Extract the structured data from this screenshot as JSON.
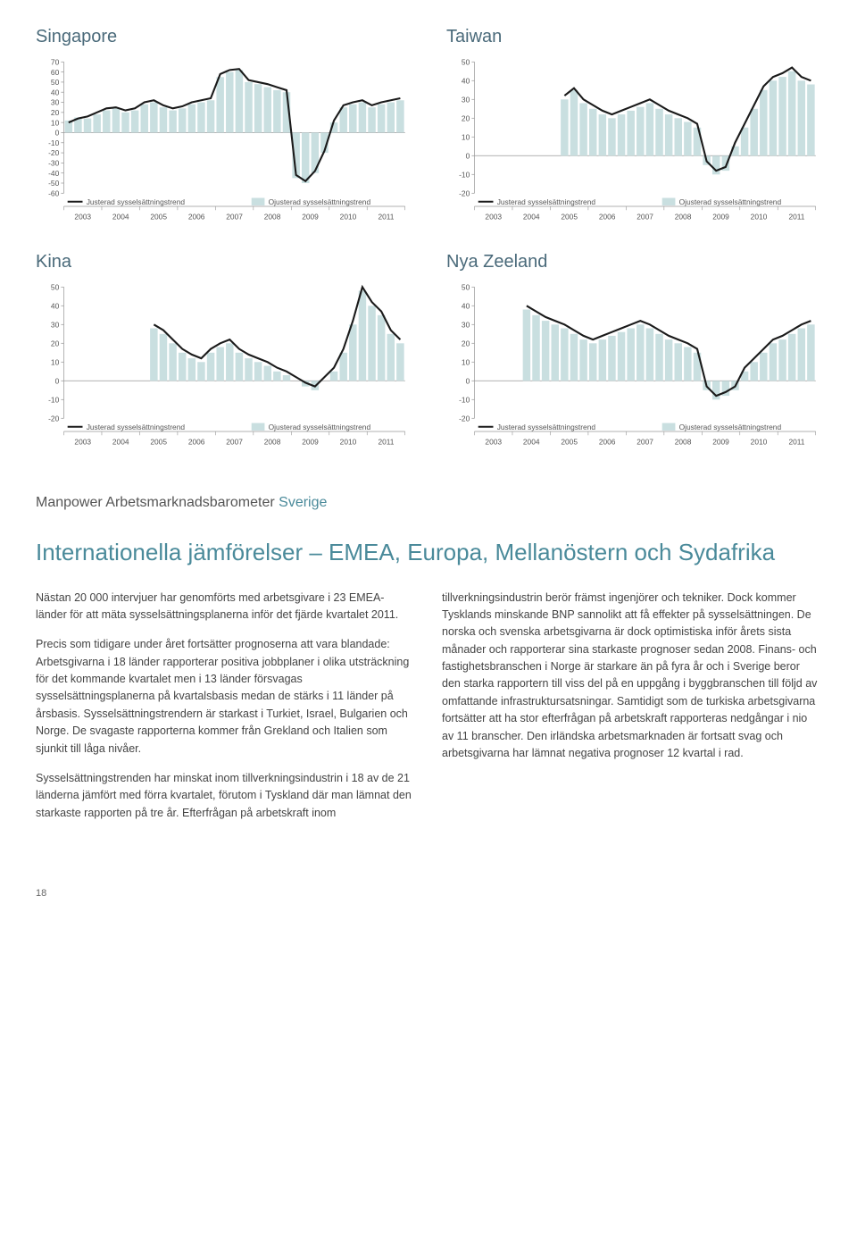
{
  "charts": {
    "singapore": {
      "title": "Singapore",
      "type": "bar+line",
      "ylim": [
        -60,
        70
      ],
      "ytick_step": 10,
      "years": [
        "2003",
        "2004",
        "2005",
        "2006",
        "2007",
        "2008",
        "2009",
        "2010",
        "2011"
      ],
      "bars": [
        12,
        15,
        14,
        18,
        22,
        24,
        20,
        22,
        28,
        30,
        25,
        22,
        24,
        28,
        30,
        32,
        55,
        60,
        62,
        50,
        48,
        45,
        42,
        40,
        -45,
        -50,
        -40,
        -20,
        10,
        25,
        28,
        30,
        25,
        28,
        30,
        32
      ],
      "line": [
        10,
        14,
        16,
        20,
        24,
        25,
        22,
        24,
        30,
        32,
        27,
        24,
        26,
        30,
        32,
        34,
        58,
        62,
        63,
        52,
        50,
        48,
        45,
        42,
        -42,
        -48,
        -38,
        -18,
        12,
        27,
        30,
        32,
        27,
        30,
        32,
        34
      ],
      "bar_color": "#c9dfe0",
      "line_color": "#1a1a1a",
      "legend_adj": "Justerad sysselsättningstrend",
      "legend_raw": "Ojusterad sysselsättningstrend",
      "grid_color": "#999999"
    },
    "taiwan": {
      "title": "Taiwan",
      "type": "bar+line",
      "ylim": [
        -20,
        50
      ],
      "ytick_step": 10,
      "years": [
        "2003",
        "2004",
        "2005",
        "2006",
        "2007",
        "2008",
        "2009",
        "2010",
        "2011"
      ],
      "bars": [
        null,
        null,
        null,
        null,
        null,
        null,
        null,
        null,
        null,
        30,
        35,
        28,
        25,
        22,
        20,
        22,
        24,
        26,
        28,
        25,
        22,
        20,
        18,
        15,
        -5,
        -10,
        -8,
        5,
        15,
        25,
        35,
        40,
        42,
        45,
        40,
        38
      ],
      "line": [
        null,
        null,
        null,
        null,
        null,
        null,
        null,
        null,
        null,
        32,
        36,
        30,
        27,
        24,
        22,
        24,
        26,
        28,
        30,
        27,
        24,
        22,
        20,
        17,
        -3,
        -8,
        -6,
        7,
        17,
        27,
        37,
        42,
        44,
        47,
        42,
        40
      ],
      "bar_color": "#c9dfe0",
      "line_color": "#1a1a1a",
      "legend_adj": "Justerad sysselsättningstrend",
      "legend_raw": "Ojusterad sysselsättningstrend",
      "grid_color": "#999999"
    },
    "kina": {
      "title": "Kina",
      "type": "bar+line",
      "ylim": [
        -20,
        50
      ],
      "ytick_step": 10,
      "years": [
        "2003",
        "2004",
        "2005",
        "2006",
        "2007",
        "2008",
        "2009",
        "2010",
        "2011"
      ],
      "bars": [
        null,
        null,
        null,
        null,
        null,
        null,
        null,
        null,
        null,
        28,
        25,
        20,
        15,
        12,
        10,
        15,
        18,
        20,
        15,
        12,
        10,
        8,
        5,
        3,
        0,
        -3,
        -5,
        0,
        5,
        15,
        30,
        48,
        40,
        35,
        25,
        20
      ],
      "line": [
        null,
        null,
        null,
        null,
        null,
        null,
        null,
        null,
        null,
        30,
        27,
        22,
        17,
        14,
        12,
        17,
        20,
        22,
        17,
        14,
        12,
        10,
        7,
        5,
        2,
        -1,
        -3,
        2,
        7,
        17,
        32,
        50,
        42,
        37,
        27,
        22
      ],
      "bar_color": "#c9dfe0",
      "line_color": "#1a1a1a",
      "legend_adj": "Justerad sysselsättningstrend",
      "legend_raw": "Ojusterad sysselsättningstrend",
      "grid_color": "#999999"
    },
    "nz": {
      "title": "Nya Zeeland",
      "type": "bar+line",
      "ylim": [
        -20,
        50
      ],
      "ytick_step": 10,
      "years": [
        "2003",
        "2004",
        "2005",
        "2006",
        "2007",
        "2008",
        "2009",
        "2010",
        "2011"
      ],
      "bars": [
        null,
        null,
        null,
        null,
        null,
        38,
        35,
        32,
        30,
        28,
        25,
        22,
        20,
        22,
        24,
        26,
        28,
        30,
        28,
        25,
        22,
        20,
        18,
        15,
        -5,
        -10,
        -8,
        -5,
        5,
        10,
        15,
        20,
        22,
        25,
        28,
        30
      ],
      "line": [
        null,
        null,
        null,
        null,
        null,
        40,
        37,
        34,
        32,
        30,
        27,
        24,
        22,
        24,
        26,
        28,
        30,
        32,
        30,
        27,
        24,
        22,
        20,
        17,
        -3,
        -8,
        -6,
        -3,
        7,
        12,
        17,
        22,
        24,
        27,
        30,
        32
      ],
      "bar_color": "#c9dfe0",
      "line_color": "#1a1a1a",
      "legend_adj": "Justerad sysselsättningstrend",
      "legend_raw": "Ojusterad sysselsättningstrend",
      "grid_color": "#999999"
    }
  },
  "sectionLabel": {
    "prefix": "Manpower Arbetsmarknadsbarometer",
    "suffix": "Sverige"
  },
  "heading": "Internationella jämförelser – EMEA, Europa, Mellanöstern och Sydafrika",
  "col1": [
    "Nästan 20 000 intervjuer har genomförts med arbetsgivare i 23 EMEA-länder för att mäta sysselsättningsplanerna inför det fjärde kvartalet 2011.",
    "Precis som tidigare under året fortsätter prognoserna att vara blandade: Arbetsgivarna i 18 länder rapporterar positiva jobbplaner i olika utsträckning för det kommande kvartalet men i 13 länder försvagas sysselsättningsplanerna på kvartalsbasis medan de stärks i 11 länder på årsbasis. Sysselsättningstrendern är starkast i Turkiet, Israel, Bulgarien och Norge. De svagaste rapporterna kommer från Grekland och Italien som sjunkit till låga nivåer.",
    "Sysselsättningstrenden har minskat inom tillverkningsindustrin i 18 av de 21 länderna jämfört med förra kvartalet, förutom i Tyskland där man lämnat den starkaste rapporten på tre år. Efterfrågan på arbetskraft inom"
  ],
  "col2": [
    "tillverkningsindustrin berör främst ingenjörer och tekniker. Dock kommer Tysklands minskande BNP sannolikt att få effekter på sysselsättningen. De norska och svenska arbetsgivarna är dock optimistiska inför årets sista månader och rapporterar sina starkaste prognoser sedan 2008. Finans- och fastighetsbranschen i Norge är starkare än på fyra år och i Sverige beror den starka rapportern till viss del på en uppgång i byggbranschen till följd av omfattande infrastruktursatsningar. Samtidigt som de turkiska arbetsgivarna fortsätter att ha stor efterfrågan på arbetskraft rapporteras nedgångar i nio av 11 branscher. Den irländska arbetsmarknaden är fortsatt svag och arbetsgivarna har lämnat negativa prognoser 12 kvartal i rad."
  ],
  "pageNum": "18",
  "colors": {
    "heading": "#4a8a9a",
    "chart_title": "#4a6a7a",
    "body_text": "#444444",
    "bar_fill": "#c9dfe0",
    "line": "#1a1a1a",
    "axis": "#999999"
  }
}
